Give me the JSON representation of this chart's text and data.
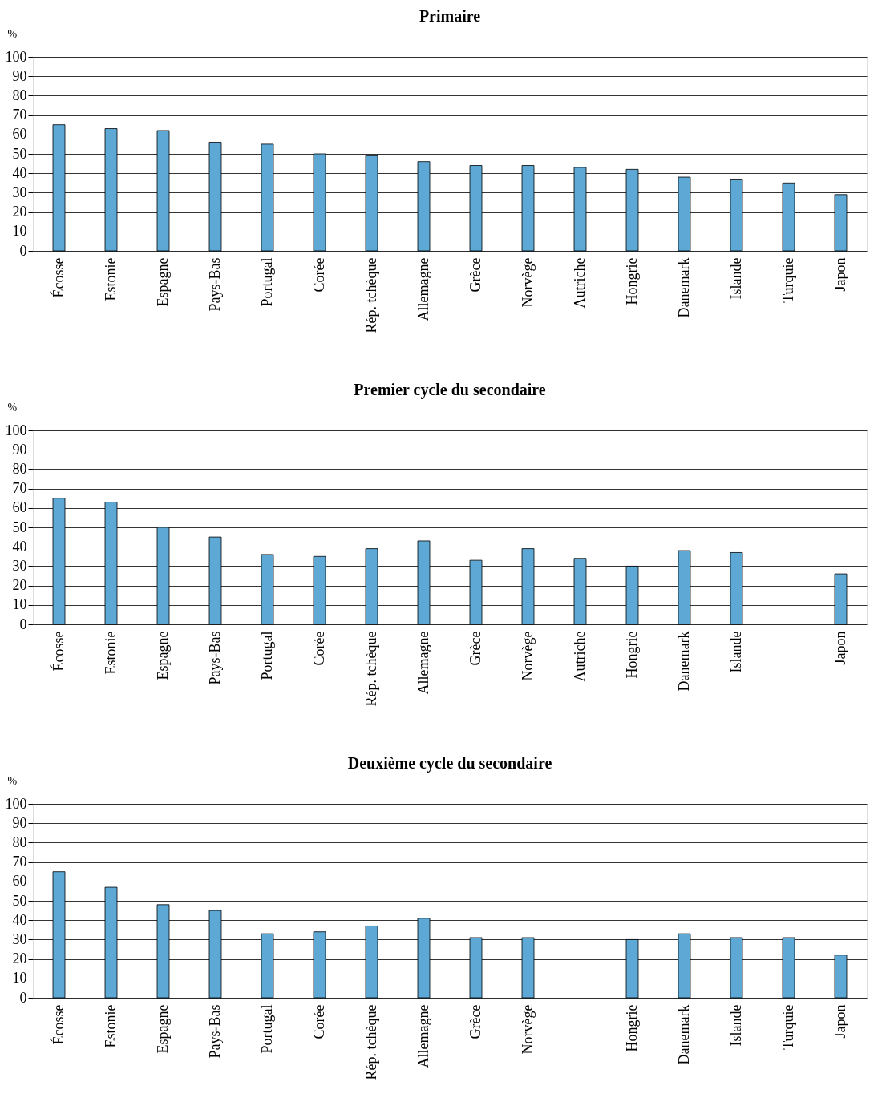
{
  "chart_data": [
    {
      "type": "bar",
      "title": "Primaire",
      "ylabel": "%",
      "color": "#5ea8d6",
      "ylim": [
        0,
        100
      ],
      "yticks": [
        0,
        10,
        20,
        30,
        40,
        50,
        60,
        70,
        80,
        90,
        100
      ],
      "grid": "y",
      "categories": [
        "Écosse",
        "Estonie",
        "Espagne",
        "Pays-Bas",
        "Portugal",
        "Corée",
        "Rép. tchèque",
        "Allemagne",
        "Grèce",
        "Norvège",
        "Autriche",
        "Hongrie",
        "Danemark",
        "Islande",
        "Turquie",
        "Japon"
      ],
      "values": [
        65,
        63,
        62,
        56,
        55,
        50,
        49,
        46,
        44,
        44,
        43,
        42,
        38,
        37,
        35,
        29
      ]
    },
    {
      "type": "bar",
      "title": "Premier cycle du secondaire",
      "ylabel": "%",
      "color": "#5ea8d6",
      "ylim": [
        0,
        100
      ],
      "yticks": [
        0,
        10,
        20,
        30,
        40,
        50,
        60,
        70,
        80,
        90,
        100
      ],
      "grid": "y",
      "categories": [
        "Écosse",
        "Estonie",
        "Espagne",
        "Pays-Bas",
        "Portugal",
        "Corée",
        "Rép. tchèque",
        "Allemagne",
        "Grèce",
        "Norvège",
        "Autriche",
        "Hongrie",
        "Danemark",
        "Islande",
        null,
        "Japon"
      ],
      "values": [
        65,
        63,
        50,
        45,
        36,
        35,
        39,
        43,
        33,
        39,
        34,
        30,
        38,
        37,
        null,
        26
      ]
    },
    {
      "type": "bar",
      "title": "Deuxième cycle du secondaire",
      "ylabel": "%",
      "color": "#5ea8d6",
      "ylim": [
        0,
        100
      ],
      "yticks": [
        0,
        10,
        20,
        30,
        40,
        50,
        60,
        70,
        80,
        90,
        100
      ],
      "grid": "y",
      "categories": [
        "Écosse",
        "Estonie",
        "Espagne",
        "Pays-Bas",
        "Portugal",
        "Corée",
        "Rép. tchèque",
        "Allemagne",
        "Grèce",
        "Norvège",
        null,
        "Hongrie",
        "Danemark",
        "Islande",
        "Turquie",
        "Japon"
      ],
      "values": [
        65,
        57,
        48,
        45,
        33,
        34,
        37,
        41,
        31,
        31,
        null,
        30,
        33,
        31,
        31,
        22
      ]
    }
  ]
}
